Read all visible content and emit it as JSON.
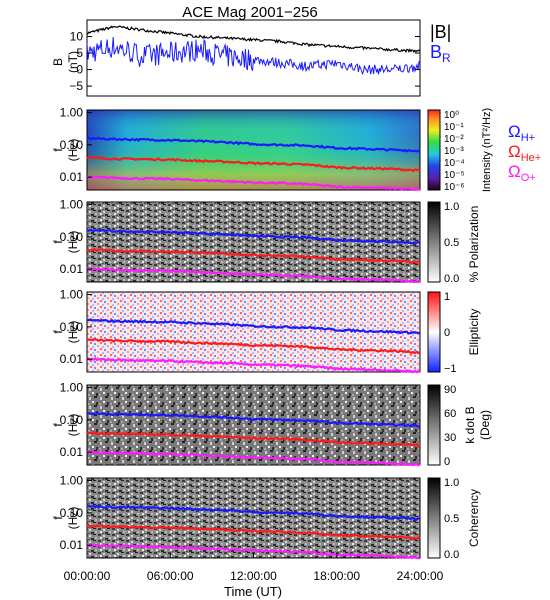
{
  "figure": {
    "title": "ACE Mag 2001−256",
    "x_ticks": [
      "00:00:00",
      "06:00:00",
      "12:00:00",
      "18:00:00",
      "24:00:00"
    ],
    "x_label": "Time (UT)"
  },
  "panels": [
    {
      "name": "b-field",
      "y_label_line1": "B",
      "y_label_line2": "(nT)",
      "y_ticks": [
        "10",
        "5",
        "0",
        "−5"
      ],
      "legend": [
        {
          "text": "|B|",
          "sub": "",
          "color": "#000000"
        },
        {
          "text": "B",
          "sub": "R",
          "color": "#1a1aff"
        }
      ]
    },
    {
      "name": "intensity",
      "y_label_line1": "f",
      "y_label_line2": "(Hz)",
      "y_ticks": [
        "1.00",
        "0.10",
        "0.01"
      ],
      "colorbar_ticks": [
        "10⁰",
        "10⁻¹",
        "10⁻²",
        "10⁻³",
        "10⁻⁴",
        "10⁻⁵",
        "10⁻⁶"
      ],
      "colorbar_label": "Intensity (nT²/Hz)",
      "legend": [
        {
          "text": "Ω",
          "sub": "H+",
          "color": "#1a1aff"
        },
        {
          "text": "Ω",
          "sub": "He+",
          "color": "#ff1a1a"
        },
        {
          "text": "Ω",
          "sub": "O+",
          "color": "#ff1aff"
        }
      ]
    },
    {
      "name": "polarization",
      "y_label_line1": "f",
      "y_label_line2": "(Hz)",
      "y_ticks": [
        "1.00",
        "0.10",
        "0.01"
      ],
      "colorbar_ticks": [
        "1.0",
        "0.5",
        "0.0"
      ],
      "colorbar_label": "% Polarization"
    },
    {
      "name": "ellipticity",
      "y_label_line1": "f",
      "y_label_line2": "(Hz)",
      "y_ticks": [
        "1.00",
        "0.10",
        "0.01"
      ],
      "colorbar_ticks": [
        "1",
        "0",
        "−1"
      ],
      "colorbar_label": "Ellipticity"
    },
    {
      "name": "k-dot-b",
      "y_label_line1": "f",
      "y_label_line2": "(Hz)",
      "y_ticks": [
        "1.00",
        "0.10",
        "0.01"
      ],
      "colorbar_ticks": [
        "90",
        "60",
        "30",
        "0"
      ],
      "colorbar_label_line1": "k dot B",
      "colorbar_label_line2": "(Deg)"
    },
    {
      "name": "coherency",
      "y_label_line1": "f",
      "y_label_line2": "(Hz)",
      "y_ticks": [
        "1.00",
        "0.10",
        "0.01"
      ],
      "colorbar_ticks": [
        "1.0",
        "0.5",
        "0.0"
      ],
      "colorbar_label": "Coherency"
    }
  ],
  "chart_data": {
    "type": "line",
    "title": "ACE Mag 2001−256",
    "xlabel": "Time (UT)",
    "x_hours": [
      0,
      2,
      4,
      6,
      8,
      10,
      12,
      14,
      16,
      18,
      20,
      22,
      24
    ],
    "xlim_hours": [
      0,
      24
    ],
    "b_panel": {
      "ylabel": "B (nT)",
      "ylim": [
        -8,
        15
      ],
      "series": [
        {
          "name": "|B|",
          "color": "#000000",
          "values": [
            11,
            13,
            12,
            11,
            10,
            9.5,
            9,
            8.5,
            7.5,
            7,
            6.5,
            6,
            5.5
          ]
        },
        {
          "name": "B_R",
          "color": "#1a1aff",
          "values": [
            5,
            7,
            4,
            5,
            6,
            4,
            3,
            2,
            1,
            2,
            0,
            0,
            1
          ]
        }
      ]
    },
    "frequency_panels": {
      "ylabel": "f (Hz)",
      "yscale": "log",
      "ylim": [
        0.004,
        1.2
      ],
      "series": [
        {
          "name": "ΩH+",
          "color": "#1a1aff",
          "values": [
            0.16,
            0.15,
            0.145,
            0.14,
            0.13,
            0.12,
            0.105,
            0.1,
            0.095,
            0.08,
            0.075,
            0.07,
            0.065
          ]
        },
        {
          "name": "ΩHe+",
          "color": "#ff1a1a",
          "values": [
            0.04,
            0.037,
            0.036,
            0.035,
            0.032,
            0.03,
            0.027,
            0.026,
            0.024,
            0.02,
            0.019,
            0.018,
            0.016
          ]
        },
        {
          "name": "ΩO+",
          "color": "#ff1aff",
          "values": [
            0.01,
            0.0095,
            0.009,
            0.0088,
            0.008,
            0.0075,
            0.0068,
            0.0065,
            0.006,
            0.005,
            0.0048,
            0.0045,
            0.0041
          ]
        }
      ]
    }
  }
}
